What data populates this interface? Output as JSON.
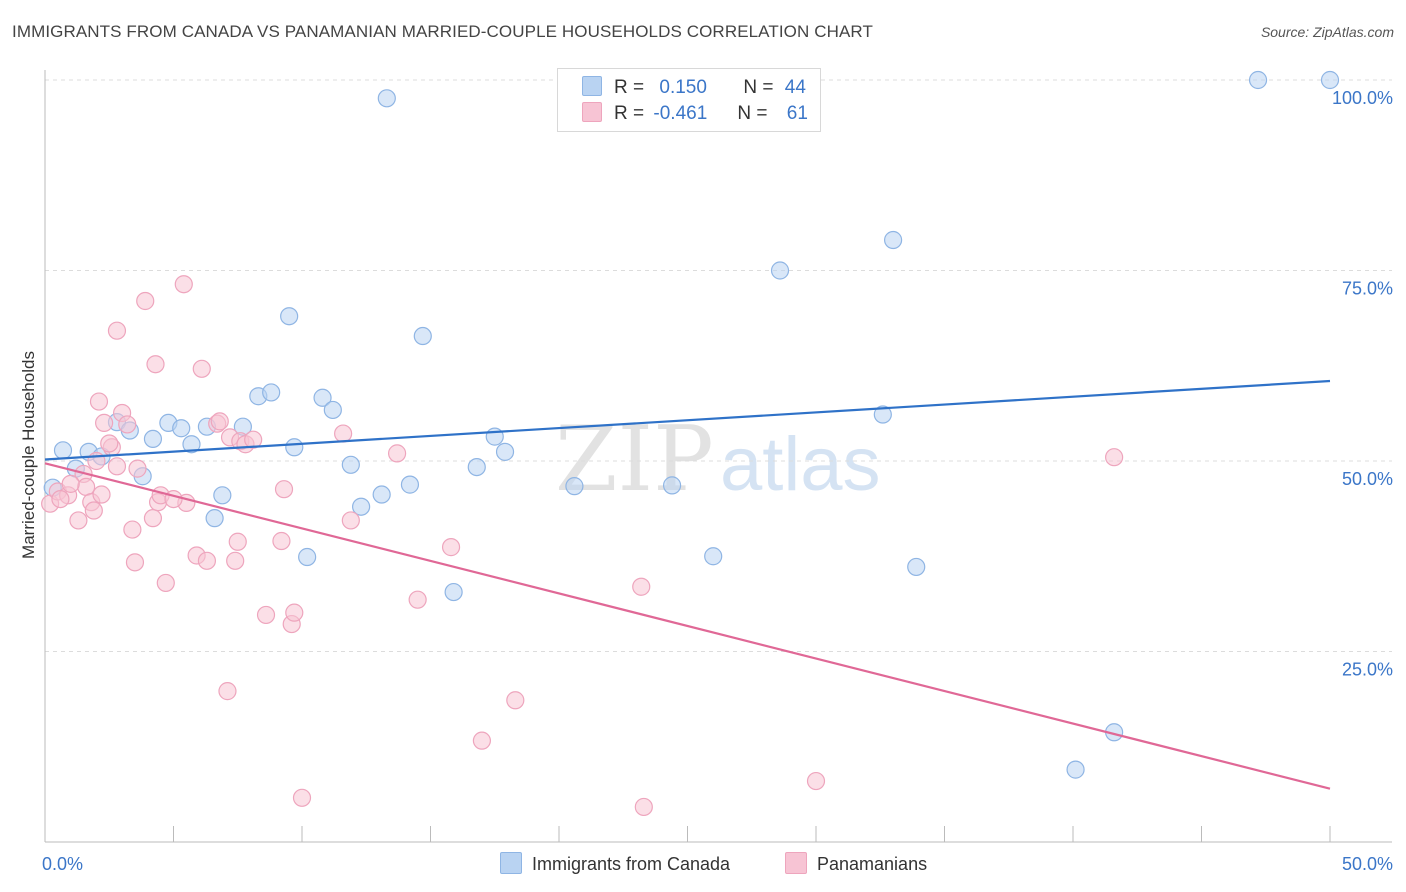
{
  "title": "IMMIGRANTS FROM CANADA VS PANAMANIAN MARRIED-COUPLE HOUSEHOLDS CORRELATION CHART",
  "source": "Source: ZipAtlas.com",
  "watermark": {
    "zip": "ZIP",
    "atlas": "atlas"
  },
  "legend": {
    "r_label": "R =",
    "n_label": "N =",
    "series": [
      {
        "r": "0.150",
        "n": "44"
      },
      {
        "r": "-0.461",
        "n": "61"
      }
    ]
  },
  "colors": {
    "blue_fill": "#b9d3f2",
    "blue_stroke": "#8fb5e4",
    "blue_line": "#2f72c8",
    "pink_fill": "#f7c4d4",
    "pink_stroke": "#eea5bd",
    "pink_line": "#e06896",
    "tick_label": "#3b76c8"
  },
  "chart_data": {
    "type": "scatter",
    "title": "IMMIGRANTS FROM CANADA VS PANAMANIAN MARRIED-COUPLE HOUSEHOLDS CORRELATION CHART",
    "xlabel": "",
    "ylabel": "Married-couple Households",
    "xlim": [
      0,
      50
    ],
    "ylim": [
      0,
      102
    ],
    "x_tick_labels": [
      "0.0%",
      "50.0%"
    ],
    "y_ticks": [
      {
        "value": 25,
        "label": "25.0%"
      },
      {
        "value": 50,
        "label": "50.0%"
      },
      {
        "value": 75,
        "label": "75.0%"
      },
      {
        "value": 100,
        "label": "100.0%"
      }
    ],
    "series": [
      {
        "name": "Immigrants from Canada",
        "trend": {
          "x0": 0,
          "y0": 50.2,
          "x1": 50,
          "y1": 60.5
        },
        "points": [
          [
            0.7,
            51.4
          ],
          [
            1.2,
            49.0
          ],
          [
            1.7,
            51.2
          ],
          [
            2.2,
            50.6
          ],
          [
            2.8,
            55.1
          ],
          [
            3.3,
            54.0
          ],
          [
            3.8,
            48.0
          ],
          [
            4.2,
            52.9
          ],
          [
            4.8,
            55.0
          ],
          [
            5.3,
            54.3
          ],
          [
            5.7,
            52.2
          ],
          [
            6.3,
            54.5
          ],
          [
            6.6,
            42.5
          ],
          [
            6.9,
            45.5
          ],
          [
            7.7,
            54.5
          ],
          [
            8.3,
            58.5
          ],
          [
            8.8,
            59.0
          ],
          [
            9.5,
            69.0
          ],
          [
            9.7,
            51.8
          ],
          [
            10.2,
            37.4
          ],
          [
            10.8,
            58.3
          ],
          [
            11.2,
            56.7
          ],
          [
            11.9,
            49.5
          ],
          [
            12.3,
            44.0
          ],
          [
            13.1,
            45.6
          ],
          [
            13.3,
            97.6
          ],
          [
            14.2,
            46.9
          ],
          [
            14.7,
            66.4
          ],
          [
            15.9,
            32.8
          ],
          [
            16.8,
            49.2
          ],
          [
            17.5,
            53.2
          ],
          [
            17.9,
            51.2
          ],
          [
            20.6,
            46.7
          ],
          [
            24.4,
            46.8
          ],
          [
            26.0,
            37.5
          ],
          [
            28.6,
            75.0
          ],
          [
            32.6,
            56.1
          ],
          [
            33.0,
            79.0
          ],
          [
            33.9,
            36.1
          ],
          [
            40.1,
            9.5
          ],
          [
            41.6,
            14.4
          ],
          [
            47.2,
            100.0
          ],
          [
            50.0,
            100.0
          ],
          [
            0.3,
            46.5
          ]
        ]
      },
      {
        "name": "Panamanians",
        "trend": {
          "x0": 0,
          "y0": 49.7,
          "x1": 50,
          "y1": 7.0
        },
        "points": [
          [
            0.2,
            44.4
          ],
          [
            0.5,
            46.0
          ],
          [
            0.9,
            45.5
          ],
          [
            1.3,
            42.2
          ],
          [
            1.5,
            48.3
          ],
          [
            1.6,
            46.6
          ],
          [
            1.8,
            44.6
          ],
          [
            2.0,
            50.0
          ],
          [
            2.1,
            57.8
          ],
          [
            2.2,
            45.6
          ],
          [
            2.3,
            55.0
          ],
          [
            2.6,
            51.8
          ],
          [
            2.8,
            49.3
          ],
          [
            2.8,
            67.1
          ],
          [
            3.0,
            56.3
          ],
          [
            3.2,
            54.8
          ],
          [
            3.4,
            41.0
          ],
          [
            3.5,
            36.7
          ],
          [
            3.6,
            49.0
          ],
          [
            3.9,
            71.0
          ],
          [
            4.2,
            42.5
          ],
          [
            4.3,
            62.7
          ],
          [
            4.4,
            44.6
          ],
          [
            4.5,
            45.5
          ],
          [
            4.7,
            34.0
          ],
          [
            5.4,
            73.2
          ],
          [
            5.5,
            44.5
          ],
          [
            5.9,
            37.6
          ],
          [
            6.1,
            62.1
          ],
          [
            6.3,
            36.9
          ],
          [
            6.7,
            54.9
          ],
          [
            7.1,
            19.8
          ],
          [
            7.2,
            53.1
          ],
          [
            7.4,
            36.9
          ],
          [
            7.5,
            39.4
          ],
          [
            7.6,
            52.6
          ],
          [
            7.8,
            52.2
          ],
          [
            8.1,
            52.8
          ],
          [
            8.6,
            29.8
          ],
          [
            9.2,
            39.5
          ],
          [
            9.3,
            46.3
          ],
          [
            9.6,
            28.6
          ],
          [
            9.7,
            30.1
          ],
          [
            10.0,
            5.8
          ],
          [
            11.6,
            53.6
          ],
          [
            11.9,
            42.2
          ],
          [
            13.7,
            51.0
          ],
          [
            14.5,
            31.8
          ],
          [
            15.8,
            38.7
          ],
          [
            17.0,
            13.3
          ],
          [
            18.3,
            18.6
          ],
          [
            23.3,
            4.6
          ],
          [
            23.2,
            33.5
          ],
          [
            30.0,
            8.0
          ],
          [
            41.6,
            50.5
          ],
          [
            1.0,
            47.0
          ],
          [
            2.5,
            52.3
          ],
          [
            5.0,
            45.0
          ],
          [
            6.8,
            55.2
          ],
          [
            1.9,
            43.5
          ],
          [
            0.6,
            45.0
          ]
        ]
      }
    ]
  }
}
